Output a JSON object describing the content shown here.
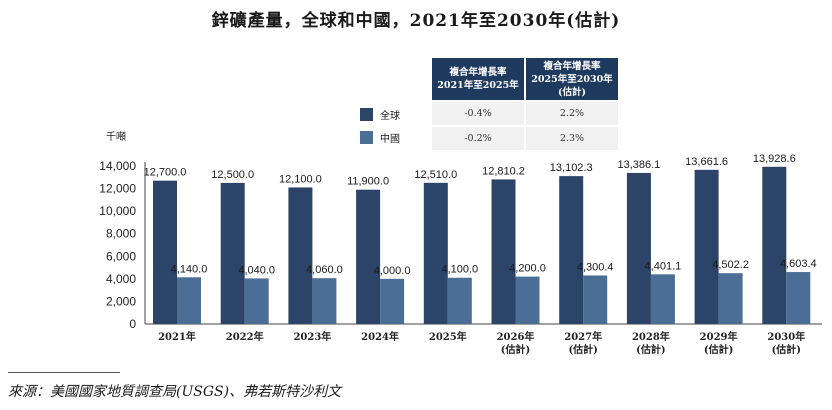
{
  "title": "鋅礦產量，全球和中國，2021年至2030年(估計)",
  "cagr_table": {
    "headers": [
      "複合年增長率\n2021年至2025年",
      "複合年增長率\n2025年至2030年\n(估計)"
    ],
    "rows": [
      {
        "legend": "全球",
        "values": [
          "-0.4%",
          "2.2%"
        ]
      },
      {
        "legend": "中國",
        "values": [
          "-0.2%",
          "2.3%"
        ]
      }
    ]
  },
  "colors": {
    "global": "#2c4468",
    "china": "#4a6e96",
    "header_bg": "#1f3a5f"
  },
  "source": "來源：美國國家地質調查局(USGS)、弗若斯特沙利文",
  "chart_data": {
    "type": "bar",
    "title": "鋅礦產量，全球和中國，2021年至2030年(估計)",
    "ylabel": "千噸",
    "categories": [
      "2021年",
      "2022年",
      "2023年",
      "2024年",
      "2025年",
      "2026年\n(估計)",
      "2027年\n(估計)",
      "2028年\n(估計)",
      "2029年\n(估計)",
      "2030年\n(估計)"
    ],
    "ylim": [
      0,
      14000
    ],
    "yticks": [
      "0",
      "2,000",
      "4,000",
      "6,000",
      "8,000",
      "10,000",
      "12,000",
      "14,000"
    ],
    "ytick_values": [
      0,
      2000,
      4000,
      6000,
      8000,
      10000,
      12000,
      14000
    ],
    "grid": false,
    "legend_position": "top-center",
    "series": [
      {
        "name": "全球",
        "values": [
          12700.0,
          12500.0,
          12100.0,
          11900.0,
          12510.0,
          12810.2,
          13102.3,
          13386.1,
          13661.6,
          13928.6
        ],
        "labels": [
          "12,700.0",
          "12,500.0",
          "12,100.0",
          "11,900.0",
          "12,510.0",
          "12,810.2",
          "13,102.3",
          "13,386.1",
          "13,661.6",
          "13,928.6"
        ]
      },
      {
        "name": "中國",
        "values": [
          4140.0,
          4040.0,
          4060.0,
          4000.0,
          4100.0,
          4200.0,
          4300.4,
          4401.1,
          4502.2,
          4603.4
        ],
        "labels": [
          "4,140.0",
          "4,040.0",
          "4,060.0",
          "4,000.0",
          "4,100.0",
          "4,200.0",
          "4,300.4",
          "4,401.1",
          "4,502.2",
          "4,603.4"
        ]
      }
    ]
  }
}
